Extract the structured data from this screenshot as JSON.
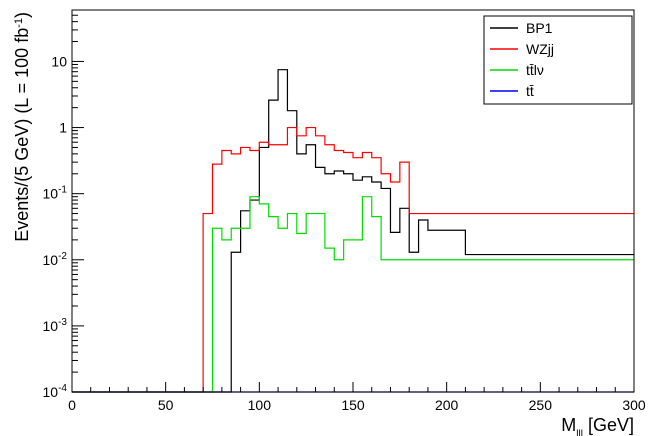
{
  "chart_data": {
    "type": "histogram",
    "bin_width": 5,
    "x_edges_start": 0,
    "title": "",
    "xlabel": {
      "main": "M",
      "sub": "lll",
      "unit": " [GeV]"
    },
    "ylabel": {
      "pre": "Events/(5 GeV) (L = 100 fb",
      "sup": "-1",
      "post": ")"
    },
    "xlim": [
      0,
      300
    ],
    "ylim": [
      0.0001,
      60
    ],
    "yscale": "log",
    "grid": false,
    "legend_position": "top-right",
    "x_ticks": [
      0,
      50,
      100,
      150,
      200,
      250,
      300
    ],
    "y_ticks": [
      {
        "value": 0.0001,
        "base": "10",
        "exp": "-4"
      },
      {
        "value": 0.001,
        "base": "10",
        "exp": "-3"
      },
      {
        "value": 0.01,
        "base": "10",
        "exp": "-2"
      },
      {
        "value": 0.1,
        "base": "10",
        "exp": "-1"
      },
      {
        "value": 1,
        "base": "1",
        "exp": ""
      },
      {
        "value": 10,
        "base": "10",
        "exp": ""
      }
    ],
    "series": [
      {
        "name": "BP1",
        "color": "#000000",
        "values": [
          0,
          0,
          0,
          0,
          0,
          0,
          0,
          0,
          0,
          0,
          0,
          0,
          0,
          0,
          0,
          0,
          0,
          0.013,
          0.055,
          0.08,
          0.5,
          2.6,
          7.5,
          1.8,
          0.4,
          0.55,
          0.25,
          0.2,
          0.22,
          0.2,
          0.16,
          0.18,
          0.15,
          0.12,
          0.026,
          0.06,
          0.013,
          0.04,
          0.028,
          0.028,
          0.028,
          0.028,
          0.012,
          0.012,
          0.012,
          0.012,
          0.012,
          0.012,
          0.012,
          0.012,
          0.012,
          0.012,
          0.012,
          0.012,
          0.012,
          0.012,
          0.012,
          0.012,
          0.012,
          0.012
        ]
      },
      {
        "name": "WZjj",
        "color": "#ff0000",
        "values": [
          0,
          0,
          0,
          0,
          0,
          0,
          0,
          0,
          0,
          0,
          0,
          0,
          0,
          0,
          0.05,
          0.28,
          0.45,
          0.4,
          0.5,
          0.45,
          0.6,
          0.55,
          0.55,
          1,
          0.75,
          1,
          0.75,
          0.55,
          0.45,
          0.42,
          0.35,
          0.42,
          0.35,
          0.2,
          0.15,
          0.3,
          0.05,
          0.05,
          0.05,
          0.05,
          0.05,
          0.05,
          0.05,
          0.05,
          0.05,
          0.05,
          0.05,
          0.05,
          0.05,
          0.05,
          0.05,
          0.05,
          0.05,
          0.05,
          0.05,
          0.05,
          0.05,
          0.05,
          0.05,
          0.05
        ]
      },
      {
        "name": "tt̄lν",
        "color": "#00dd00",
        "values": [
          0,
          0,
          0,
          0,
          0,
          0,
          0,
          0,
          0,
          0,
          0,
          0,
          0,
          0,
          0,
          0.03,
          0.02,
          0.03,
          0.03,
          0.09,
          0.07,
          0.045,
          0.03,
          0.05,
          0.025,
          0.05,
          0.05,
          0.015,
          0.01,
          0.02,
          0.02,
          0.09,
          0.045,
          0.01,
          0.01,
          0.01,
          0.01,
          0.01,
          0.01,
          0.01,
          0.01,
          0.01,
          0.01,
          0.01,
          0.01,
          0.01,
          0.01,
          0.01,
          0.01,
          0.01,
          0.01,
          0.01,
          0.01,
          0.01,
          0.01,
          0.01,
          0.01,
          0.01,
          0.01,
          0.01
        ]
      },
      {
        "name": "tt̄",
        "color": "#0000ff",
        "values": [
          0,
          0,
          0,
          0,
          0,
          0,
          0,
          0,
          0,
          0,
          0,
          0,
          0,
          0,
          0,
          0,
          0,
          0,
          0,
          0,
          0,
          0,
          0,
          0,
          0,
          0,
          0,
          0,
          0,
          0,
          0,
          0,
          0,
          0,
          0,
          0,
          0,
          0,
          0,
          0,
          0,
          0,
          0,
          0,
          0,
          0,
          0,
          0,
          0,
          0,
          0,
          0,
          0,
          0,
          0,
          0,
          0,
          0,
          0,
          0
        ]
      }
    ]
  }
}
